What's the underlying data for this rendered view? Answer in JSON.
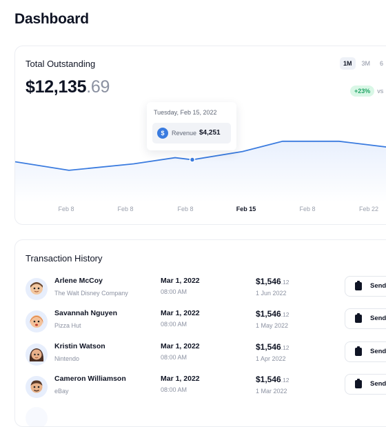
{
  "page": {
    "title": "Dashboard"
  },
  "outstanding": {
    "title": "Total Outstanding",
    "value_main": "$12,135",
    "value_cents": ".69",
    "range_tabs": [
      "1M",
      "3M",
      "6"
    ],
    "active_range": "1M",
    "change_badge": "+23%",
    "change_suffix": "vs"
  },
  "chart_data": {
    "type": "area",
    "x_labels": [
      "Feb 8",
      "Feb 8",
      "Feb 8",
      "Feb 15",
      "Feb 8",
      "Feb 22"
    ],
    "active_label": "Feb 15",
    "series": [
      {
        "values": [
          3700,
          3450,
          3640,
          3820,
          3760,
          4000,
          4300,
          4300,
          4080,
          4080
        ]
      }
    ],
    "tooltip": {
      "date": "Tuesday, Feb 15, 2022",
      "label": "Revenue",
      "value": "$4,251",
      "icon": "dollar-icon"
    },
    "colors": {
      "line": "#3a7bdf",
      "fill": "#eef3fd"
    },
    "grid": false
  },
  "transactions": {
    "title": "Transaction History",
    "rows": [
      {
        "name": "Arlene McCoy",
        "company": "The Walt Disney Company",
        "date": "Mar 1, 2022",
        "time": "08:00 AM",
        "amount_main": "$1,546",
        "amount_cents": ".12",
        "amount_date": "1 Jun 2022",
        "action": "Send",
        "avatar": "person-avatar-1"
      },
      {
        "name": "Savannah Nguyen",
        "company": "Pizza Hut",
        "date": "Mar 1, 2022",
        "time": "08:00 AM",
        "amount_main": "$1,546",
        "amount_cents": ".12",
        "amount_date": "1 May 2022",
        "action": "Send",
        "avatar": "person-avatar-2"
      },
      {
        "name": "Kristin Watson",
        "company": "Nintendo",
        "date": "Mar 1, 2022",
        "time": "08:00 AM",
        "amount_main": "$1,546",
        "amount_cents": ".12",
        "amount_date": "1 Apr 2022",
        "action": "Send",
        "avatar": "person-avatar-3"
      },
      {
        "name": "Cameron Williamson",
        "company": "eBay",
        "date": "Mar 1, 2022",
        "time": "08:00 AM",
        "amount_main": "$1,546",
        "amount_cents": ".12",
        "amount_date": "1 Mar 2022",
        "action": "Send",
        "avatar": "person-avatar-4"
      }
    ]
  }
}
